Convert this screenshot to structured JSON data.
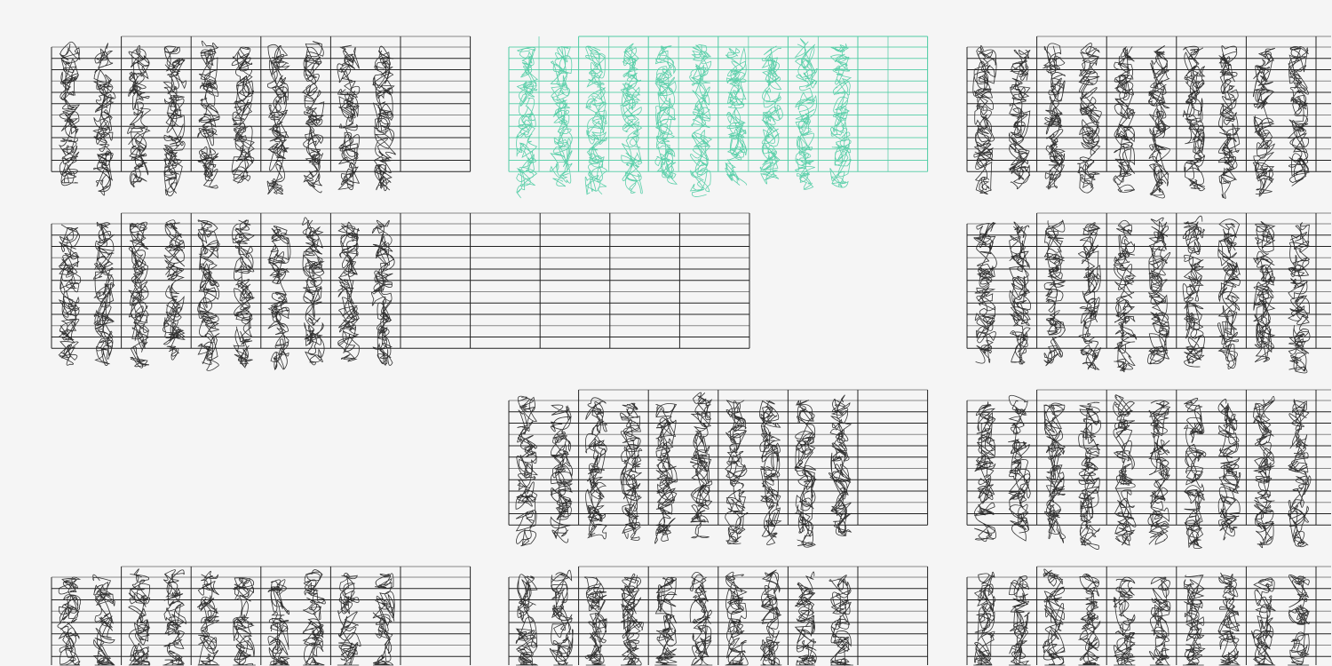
{
  "canvas": {
    "background": "#f5f5f5"
  },
  "colors": {
    "ink": "#1e1e1e",
    "accent": "#4ecca3",
    "grid_dark": "#222222",
    "grid_light": "#888888"
  },
  "panels": [
    {
      "row": 0,
      "col": 0,
      "cells": 6,
      "scribbled": true,
      "color": "ink"
    },
    {
      "row": 0,
      "col": 1,
      "cells": 6,
      "scribbled": true,
      "color": "accent"
    },
    {
      "row": 0,
      "col": 2,
      "cells": 6,
      "scribbled": true,
      "color": "ink"
    },
    {
      "row": 1,
      "col": 0,
      "cells": 10,
      "scribbled": true,
      "color": "ink"
    },
    {
      "row": 1,
      "col": 2,
      "cells": 6,
      "scribbled": true,
      "color": "ink"
    },
    {
      "row": 2,
      "col": 1,
      "cells": 6,
      "scribbled": true,
      "color": "ink"
    },
    {
      "row": 2,
      "col": 2,
      "cells": 6,
      "scribbled": true,
      "color": "ink"
    },
    {
      "row": 3,
      "col": 0,
      "cells": 6,
      "scribbled": true,
      "color": "ink"
    },
    {
      "row": 3,
      "col": 1,
      "cells": 6,
      "scribbled": true,
      "color": "ink"
    },
    {
      "row": 3,
      "col": 2,
      "cells": 6,
      "scribbled": true,
      "color": "ink"
    }
  ],
  "scribble_columns_per_panel": 10,
  "staff_lines_per_panel": 12
}
